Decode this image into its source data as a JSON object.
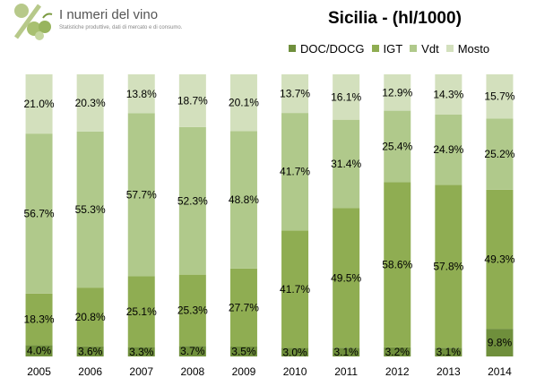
{
  "header": {
    "logo_title": "I numeri del vino",
    "logo_subtitle": "Statistiche produttive, dati di mercato e di consumo.",
    "logo_icon": "percent-grape-icon"
  },
  "chart_data": {
    "type": "bar",
    "stacked": true,
    "percent": true,
    "title": "Sicilia - (hl/1000)",
    "xlabel": "",
    "ylabel": "",
    "ylim": [
      0,
      100
    ],
    "grid": false,
    "legend_position": "top-right",
    "categories": [
      "2005",
      "2006",
      "2007",
      "2008",
      "2009",
      "2010",
      "2011",
      "2012",
      "2013",
      "2014"
    ],
    "series": [
      {
        "name": "DOC/DOCG",
        "color": "#6f8f3c",
        "values": [
          4.0,
          3.6,
          3.3,
          3.7,
          3.5,
          3.0,
          3.1,
          3.2,
          3.1,
          9.8
        ],
        "labels": [
          "4.0%",
          "3.6%",
          "3.3%",
          "3.7%",
          "3.5%",
          "3.0%",
          "3.1%",
          "3.2%",
          "3.1%",
          "9.8%"
        ]
      },
      {
        "name": "IGT",
        "color": "#8fad52",
        "values": [
          18.3,
          20.8,
          25.1,
          25.3,
          27.7,
          41.7,
          49.5,
          58.6,
          57.8,
          49.3
        ],
        "labels": [
          "18.3%",
          "20.8%",
          "25.1%",
          "25.3%",
          "27.7%",
          "41.7%",
          "49.5%",
          "58.6%",
          "57.8%",
          "49.3%"
        ]
      },
      {
        "name": "Vdt",
        "color": "#b0c98b",
        "values": [
          56.7,
          55.3,
          57.7,
          52.3,
          48.8,
          41.7,
          31.4,
          25.4,
          24.9,
          25.2
        ],
        "labels": [
          "56.7%",
          "55.3%",
          "57.7%",
          "52.3%",
          "48.8%",
          "41.7%",
          "31.4%",
          "25.4%",
          "24.9%",
          "25.2%"
        ]
      },
      {
        "name": "Mosto",
        "color": "#d3e0bd",
        "values": [
          21.0,
          20.3,
          13.8,
          18.7,
          20.1,
          13.7,
          16.1,
          12.9,
          14.3,
          15.7
        ],
        "labels": [
          "21.0%",
          "20.3%",
          "13.8%",
          "18.7%",
          "20.1%",
          "13.7%",
          "16.1%",
          "12.9%",
          "14.3%",
          "15.7%"
        ]
      }
    ]
  }
}
